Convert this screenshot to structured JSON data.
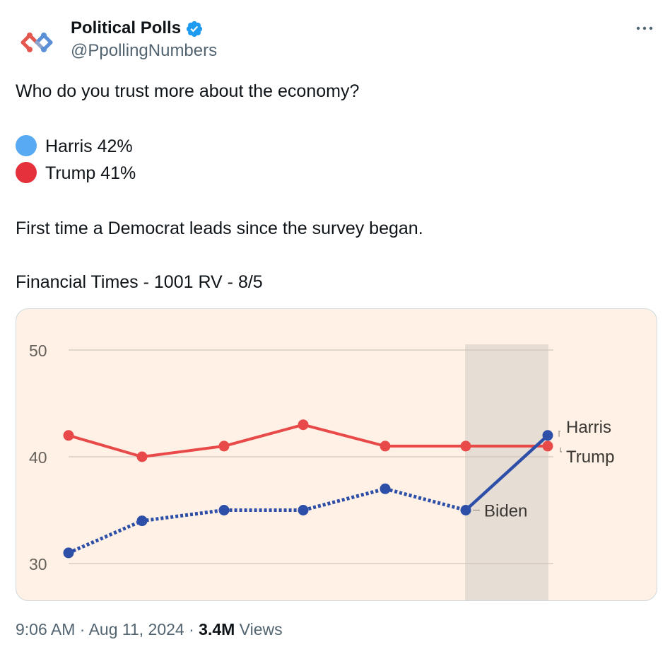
{
  "author": {
    "name": "Political Polls",
    "handle": "@PpollingNumbers"
  },
  "tweet": {
    "line1": "Who do you trust more about the economy?",
    "harris_line": "Harris 42%",
    "trump_line": "Trump 41%",
    "line4": "First time a Democrat leads since the survey began.",
    "line5": "Financial Times - 1001 RV - 8/5"
  },
  "footer": {
    "time": "9:06 AM",
    "sep1": " · ",
    "date": "Aug 11, 2024",
    "sep2": " · ",
    "views_count": "3.4M",
    "views_label": " Views"
  },
  "colors": {
    "harris_dot": "#58aaf2",
    "trump_dot": "#e4313c",
    "chart_bg": "#fff1e5",
    "trump_line": "#e84a4a",
    "dem_line": "#2e4fa8",
    "shade": "#e6ddd5",
    "verified": "#1d9bf0"
  },
  "chart_data": {
    "type": "line",
    "ylim": [
      30,
      50
    ],
    "yticks": [
      "50",
      "40",
      "30"
    ],
    "series": [
      {
        "name": "Trump",
        "values": [
          42,
          40,
          41,
          43,
          41,
          41,
          41
        ]
      },
      {
        "name": "Biden",
        "values": [
          31,
          34,
          35,
          35,
          37,
          35,
          null
        ]
      },
      {
        "name": "Harris",
        "values": [
          null,
          null,
          null,
          null,
          null,
          35,
          42
        ]
      }
    ],
    "labels": {
      "harris": "Harris",
      "trump": "Trump",
      "biden": "Biden"
    },
    "shaded_from_index": 5,
    "shaded_to_index": 6
  }
}
